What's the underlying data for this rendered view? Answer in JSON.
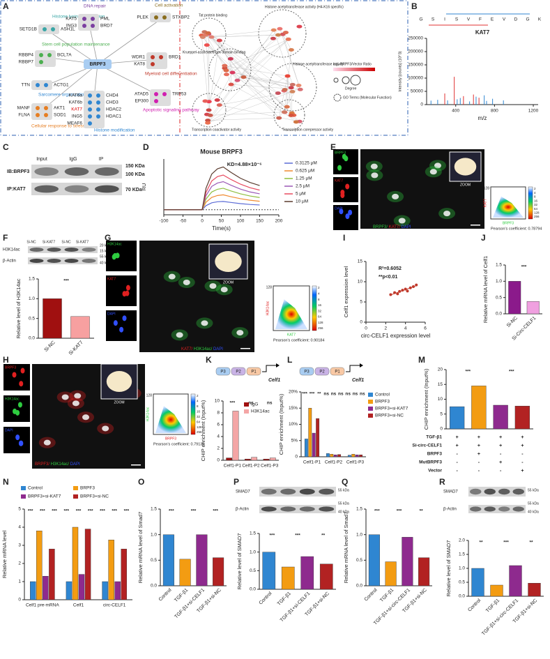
{
  "panels": {
    "A": {
      "label": "A",
      "center": "BRPF3",
      "groups": [
        {
          "title": "Histone lysine methylation",
          "genes": [
            "SETD1B",
            "ASH1L"
          ]
        },
        {
          "title": "DNA repair",
          "genes": [
            "KAT5",
            "PML",
            "ING3",
            "BRD7"
          ]
        },
        {
          "title": "Cell activation",
          "genes": [
            "PLEK",
            "STXBP2"
          ]
        },
        {
          "title": "Stem cell population maintenance",
          "genes": [
            "RBBP4",
            "BCL7A",
            "RBBP7"
          ]
        },
        {
          "title": "Myeloid cell differentiation",
          "genes": [
            "WDR1",
            "BRD1",
            "KAT8"
          ]
        },
        {
          "title": "Sarcomere organization",
          "genes": [
            "TTN",
            "ACTG1"
          ]
        },
        {
          "title": "Apoptotic signaling pathway",
          "genes": [
            "ATAD5",
            "TRP53",
            "EP300"
          ]
        },
        {
          "title": "Cellular response to stress",
          "genes": [
            "MANF",
            "AKT1",
            "FLNA",
            "SOD1"
          ]
        },
        {
          "title": "Histone modification",
          "genes": [
            "KAT6a",
            "CHD4",
            "KAT6b",
            "CHD3",
            "KAT7",
            "HDAC2",
            "ING5",
            "HDAC1",
            "MEAF6"
          ]
        }
      ],
      "network_terms": [
        "Tat protein binding",
        "Histone acetyltransferase activity (H4-K16 specific)",
        "Histone acetyltransferase activity",
        "Transcription coactivator activity",
        "Transcription corepressor activity",
        "Krueppel-associated box domain binding"
      ],
      "legend": {
        "ratio": "log₂ BRPF3/Vector Ratio",
        "degree": "Degree",
        "go": "GO Terms (Molecular Function)"
      }
    },
    "C": {
      "label": "C",
      "columns": [
        "Input",
        "IgG",
        "IP"
      ],
      "rows": [
        "IB:BRPF3",
        "IP:KAT7"
      ],
      "markers": [
        "150 KDa",
        "100 KDa",
        "70 KDa"
      ]
    },
    "E": {
      "label": "E",
      "channels": [
        "BRPF3",
        "KAT7",
        "DAPI"
      ],
      "zoom": "ZOOM",
      "merge": [
        "BRPF3/ ",
        "KAT7/ ",
        "DAPI"
      ],
      "x_axis": "BRPF3",
      "y_axis": "KAT7",
      "y_max": "128",
      "colorbar": [
        2,
        4,
        8,
        16,
        32,
        64,
        128,
        256
      ],
      "pearson": "Pearson's coefficient: 0.78794"
    },
    "F": {
      "lanes": [
        "Si-NC",
        "Si-KAT7",
        "Si-NC",
        "Si-KAT7"
      ],
      "rows": [
        "H3K14ac",
        "β-Actin"
      ],
      "markers": [
        "20 kDa",
        "15 kDa",
        "55 kDa",
        "40 kDa"
      ]
    },
    "G": {
      "label": "G",
      "channels": [
        "H3K14ac",
        "KAT7",
        "DAPI"
      ],
      "zoom": "ZOOM",
      "merge": [
        "KAT7/ ",
        "H3K14ac/ ",
        "DAPI"
      ],
      "x_axis": "KAT7",
      "y_axis": "H3K14ac",
      "y_max": "128",
      "colorbar": [
        2,
        4,
        8,
        16,
        32,
        64,
        128,
        256
      ],
      "pearson": "Pearson's coefficient: 0.90184"
    },
    "H": {
      "label": "H",
      "channels": [
        "BRPF3",
        "H3K14ac",
        "DAPI"
      ],
      "zoom": "ZOOM",
      "merge": [
        "BRPF3/ ",
        "H3K14ac/ ",
        "DAPI"
      ],
      "x_axis": "BRPF3",
      "y_axis": "H3K14ac",
      "y_max": "128",
      "colorbar": [
        2,
        4,
        8,
        16,
        32,
        64,
        128,
        256
      ],
      "pearson": "Pearson's coefficient: 0.79136"
    },
    "K": {
      "promoters": [
        "P3",
        "P2",
        "P1"
      ],
      "gene": "Celf1"
    },
    "L": {
      "promoters": [
        "P3",
        "P2",
        "P1"
      ],
      "gene": "Celf1"
    },
    "M": {
      "table": [
        {
          "label": "TGF-β1",
          "signs": [
            "+",
            "+",
            "+",
            "+"
          ]
        },
        {
          "label": "Si-circ-CELF1",
          "signs": [
            "+",
            "+",
            "+",
            "+"
          ]
        },
        {
          "label": "BRPF3",
          "signs": [
            "-",
            "+",
            "-",
            "-"
          ]
        },
        {
          "label": "MutBRPF3",
          "signs": [
            "-",
            "-",
            "+",
            "-"
          ]
        },
        {
          "label": "Vector",
          "signs": [
            "-",
            "-",
            "-",
            "+"
          ]
        }
      ]
    },
    "P": {
      "rows": [
        "SMAD7",
        "β-Actin"
      ],
      "markers": [
        "55 kDa",
        "55 kDa",
        "40 kDa"
      ]
    },
    "R": {
      "rows": [
        "SMAD7",
        "β-Actin"
      ],
      "markers": [
        "55 kDa",
        "55 kDa",
        "40 kDa"
      ]
    }
  },
  "chart_data": [
    {
      "panel": "B",
      "type": "stem",
      "title": "KAT7",
      "sequence": [
        "G",
        "S",
        "I",
        "S",
        "V",
        "F",
        "E",
        "V",
        "D",
        "G",
        "K"
      ],
      "xlabel": "m/z",
      "ylabel": "Intensity [counts] (10^3)",
      "xlim": [
        100,
        1250
      ],
      "xticks": [
        400,
        800,
        1200
      ],
      "ylim": [
        0,
        250000
      ],
      "yticks": [
        0,
        50000,
        100000,
        150000,
        200000,
        250000
      ],
      "series": [
        {
          "color": "#2f86d1",
          "x": [
            145,
            214,
            316,
            415,
            447,
            543,
            610,
            694,
            718,
            780,
            892
          ],
          "values": [
            15000,
            18000,
            16000,
            20000,
            25000,
            12000,
            30000,
            35000,
            14000,
            22000,
            16000
          ]
        },
        {
          "color": "#e03030",
          "x": [
            287,
            385,
            480,
            583,
            640
          ],
          "values": [
            42000,
            105000,
            32000,
            38000,
            26000
          ]
        }
      ]
    },
    {
      "panel": "D",
      "type": "line",
      "title": "Mouse BRPF3",
      "annotation": "KD=4.88×10⁻⁶",
      "xlabel": "Time(s)",
      "ylabel": "RU",
      "x": [
        -100,
        -50,
        0,
        10,
        25,
        40,
        55,
        75,
        100,
        125,
        150
      ],
      "xlim": [
        -100,
        200
      ],
      "xticks": [
        -100,
        -50,
        0,
        50,
        100,
        150,
        200
      ],
      "ylim": [
        -3,
        30
      ],
      "series": [
        {
          "name": "0.3125 μM",
          "color": "#5b6bd6",
          "values": [
            0,
            0,
            0,
            2.4,
            4.1,
            4.7,
            4.9,
            4.3,
            3.6,
            3.1,
            2.8
          ]
        },
        {
          "name": "0.625 μM",
          "color": "#f08a30",
          "values": [
            0,
            0,
            0,
            4.4,
            7.3,
            8.4,
            8.8,
            7.7,
            6.5,
            5.6,
            5.0
          ]
        },
        {
          "name": "1.25 μM",
          "color": "#8fbf3f",
          "values": [
            0,
            0,
            0,
            6.3,
            10.5,
            12.1,
            12.7,
            11.1,
            9.4,
            8.1,
            7.2
          ]
        },
        {
          "name": "2.5 μM",
          "color": "#9b59b6",
          "values": [
            0,
            0,
            0,
            8.3,
            13.8,
            15.8,
            16.6,
            14.5,
            12.2,
            10.5,
            9.4
          ]
        },
        {
          "name": "5 μM",
          "color": "#e84a5f",
          "values": [
            0,
            0,
            0,
            10.2,
            17.0,
            19.6,
            20.5,
            17.9,
            15.1,
            13.0,
            11.6
          ]
        },
        {
          "name": "10 μM",
          "color": "#5a3b2e",
          "values": [
            0,
            0,
            0,
            12.7,
            21.1,
            24.2,
            25.3,
            22.1,
            18.6,
            16.1,
            14.3
          ]
        }
      ]
    },
    {
      "panel": "F",
      "type": "bar",
      "categories": [
        "Si-NC",
        "Si-KAT7"
      ],
      "values": [
        1.0,
        0.55
      ],
      "colors": [
        "#a01010",
        "#f7a0a0"
      ],
      "ylabel": "Relative level of H3K14ac",
      "ylim": [
        0,
        1.5
      ],
      "yticks": [
        {
          "value": 0,
          "label": "0.0"
        },
        0.5,
        {
          "value": 1,
          "label": "1.0"
        },
        1.5
      ],
      "annotations": [
        "***"
      ]
    },
    {
      "panel": "I",
      "type": "scatter",
      "x": [
        2.5,
        2.9,
        3.2,
        3.4,
        3.7,
        4.0,
        4.2,
        4.5,
        4.8,
        5.1
      ],
      "values": [
        6.8,
        7.3,
        7.0,
        7.6,
        7.9,
        8.2,
        7.7,
        8.5,
        8.8,
        9.2
      ],
      "color": "#c0392b",
      "xlabel": "circ-CELF1 expression level",
      "ylabel": "Celf1 expression level",
      "xlim": [
        0,
        6
      ],
      "xticks": [
        0,
        2,
        4,
        6
      ],
      "ylim": [
        0,
        15
      ],
      "yticks": [
        0,
        5,
        10,
        15
      ],
      "annotations": [
        "R²=0.6052",
        "**p<0.01"
      ]
    },
    {
      "panel": "J",
      "type": "bar",
      "categories": [
        "Si-NC",
        "Si-Circ-CELF1"
      ],
      "values": [
        1.0,
        0.38
      ],
      "colors": [
        "#8b1a8b",
        "#f0a0e0"
      ],
      "ylabel": "Relative mRNA level of Celf1",
      "ylim": [
        0,
        1.5
      ],
      "yticks": [
        {
          "value": 0,
          "label": "0.0"
        },
        0.5,
        {
          "value": 1,
          "label": "1.0"
        },
        1.5
      ],
      "annotations": [
        "***"
      ]
    },
    {
      "panel": "K",
      "type": "bar",
      "categories": [
        "Celf1-P1",
        "Celf1-P2",
        "Celf1-P3"
      ],
      "series": [
        {
          "name": "IgG",
          "color": "#a01010",
          "values": [
            0.4,
            0.2,
            0.2
          ]
        },
        {
          "name": "H3K14ac",
          "color": "#f4a6a6",
          "values": [
            8.3,
            0.5,
            0.4
          ]
        }
      ],
      "ylabel": "CHIP enrichment (Input%)",
      "ylim": [
        0,
        10
      ],
      "yticks": [
        0,
        2,
        4,
        6,
        8,
        10
      ],
      "annotations": [
        "***",
        "ns",
        "ns"
      ]
    },
    {
      "panel": "L",
      "type": "bar",
      "categories": [
        "Celf1-P1",
        "Celf1-P2",
        "Celf1-P3"
      ],
      "series": [
        {
          "name": "Control",
          "color": "#2f86d1",
          "values": [
            5.5,
            1.0,
            0.5
          ]
        },
        {
          "name": "BRPF3",
          "color": "#f39c12",
          "values": [
            15,
            0.8,
            0.8
          ]
        },
        {
          "name": "BRPF3+si-KAT7",
          "color": "#8e2a8e",
          "values": [
            7.3,
            0.6,
            0.6
          ]
        },
        {
          "name": "BRPF3+si-NC",
          "color": "#b22222",
          "values": [
            11.8,
            0.7,
            0.6
          ]
        }
      ],
      "ylabel": "CHIP enrichment (Input%)",
      "ylim": [
        0,
        20
      ],
      "yticks": [
        0,
        {
          "value": 5,
          "label": "5%"
        },
        {
          "value": 10,
          "label": "10%"
        },
        {
          "value": 15,
          "label": "15%"
        },
        {
          "value": 20,
          "label": "20%"
        }
      ],
      "annotations": [
        "***",
        "***",
        "**",
        "ns",
        "ns",
        "ns",
        "ns",
        "ns",
        "ns"
      ]
    },
    {
      "panel": "M",
      "type": "bar",
      "categories": [
        null,
        null,
        null,
        null
      ],
      "values": [
        7.5,
        14.5,
        8.0,
        7.7
      ],
      "colors": [
        "#2f86d1",
        "#f39c12",
        "#8e2a8e",
        "#b22222"
      ],
      "ylabel": "CHIP enrichment (Input%)",
      "ylim": [
        0,
        20
      ],
      "yticks": [
        0,
        5,
        10,
        15,
        20
      ],
      "annotations": [
        "***",
        "***"
      ]
    },
    {
      "panel": "N",
      "type": "bar",
      "categories": [
        "Celf1 pre-mRNA",
        "Celf1",
        "circ-CELF1"
      ],
      "series": [
        {
          "name": "Control",
          "color": "#2f86d1",
          "values": [
            1.0,
            1.0,
            1.0
          ]
        },
        {
          "name": "BRPF3",
          "color": "#f39c12",
          "values": [
            3.8,
            4.0,
            3.3
          ]
        },
        {
          "name": "BRPF3+si-KAT7",
          "color": "#8e2a8e",
          "values": [
            1.3,
            1.4,
            1.0
          ]
        },
        {
          "name": "BRPF3+si-NC",
          "color": "#b22222",
          "values": [
            2.8,
            3.9,
            2.8
          ]
        }
      ],
      "ylabel": "Relative mRNA level",
      "ylim": [
        0,
        5
      ],
      "yticks": [
        0,
        1,
        2,
        3,
        4,
        5
      ],
      "annotations": [
        "***",
        "***",
        "***",
        "***",
        "***",
        "***",
        "***",
        "***",
        "***"
      ]
    },
    {
      "panel": "O",
      "type": "bar",
      "categories": [
        "Control",
        "TGF-β1",
        "TGF-β1+si-CELF1",
        "TGF-β1+si-NC"
      ],
      "values": [
        1.0,
        0.52,
        1.0,
        0.55
      ],
      "colors": [
        "#2f86d1",
        "#f39c12",
        "#8e2a8e",
        "#b22222"
      ],
      "ylabel": "Relative mRNA level of Smad7",
      "ylim": [
        0,
        1.5
      ],
      "yticks": [
        {
          "value": 0,
          "label": "0.0"
        },
        0.5,
        {
          "value": 1,
          "label": "1.0"
        },
        1.5
      ],
      "annotations": [
        "***",
        "***",
        "***"
      ]
    },
    {
      "panel": "P",
      "type": "bar",
      "categories": [
        "Control",
        "TGF-β1",
        "TGF-β1+si-CELF1",
        "TGF-β1+si-NC"
      ],
      "values": [
        1.0,
        0.6,
        0.88,
        0.68
      ],
      "colors": [
        "#2f86d1",
        "#f39c12",
        "#8e2a8e",
        "#b22222"
      ],
      "ylabel": "Relative level of SMAD7",
      "ylim": [
        0,
        1.5
      ],
      "yticks": [
        {
          "value": 0,
          "label": "0.0"
        },
        0.5,
        {
          "value": 1,
          "label": "1.0"
        },
        1.5
      ],
      "annotations": [
        "***",
        "***",
        "**"
      ]
    },
    {
      "panel": "Q",
      "type": "bar",
      "categories": [
        "Control",
        "TGF-β1",
        "TGF-β1+si-circ-CELF1",
        "TGF-β1+si-NC"
      ],
      "values": [
        1.0,
        0.47,
        0.95,
        0.55
      ],
      "colors": [
        "#2f86d1",
        "#f39c12",
        "#8e2a8e",
        "#b22222"
      ],
      "ylabel": "Relative mRNA level of Smad7",
      "ylim": [
        0,
        1.5
      ],
      "yticks": [
        {
          "value": 0,
          "label": "0.0"
        },
        0.5,
        {
          "value": 1,
          "label": "1.0"
        },
        1.5
      ],
      "annotations": [
        "***",
        "***",
        "**"
      ]
    },
    {
      "panel": "R",
      "type": "bar",
      "categories": [
        "Control",
        "TGF-β1",
        "TGF-β1+si-circ-CELF1",
        "TGF-β1+si-NC"
      ],
      "values": [
        1.0,
        0.4,
        1.1,
        0.47
      ],
      "colors": [
        "#2f86d1",
        "#f39c12",
        "#8e2a8e",
        "#b22222"
      ],
      "ylabel": "Relative level of SMAD7",
      "ylim": [
        0,
        2
      ],
      "yticks": [
        {
          "value": 0,
          "label": "0.0"
        },
        0.5,
        {
          "value": 1,
          "label": "1.0"
        },
        1.5,
        {
          "value": 2,
          "label": "2.0"
        }
      ],
      "annotations": [
        "**",
        "***",
        "**"
      ]
    }
  ]
}
